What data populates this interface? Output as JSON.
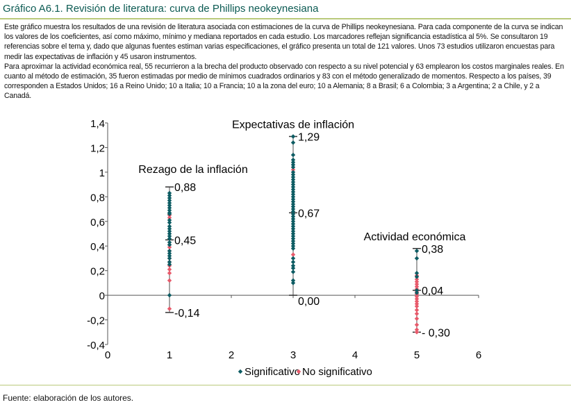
{
  "header": {
    "title": "Gráfico A6.1. Revisión de literatura: curva de Phillips neokeynesiana"
  },
  "description": [
    "Este gráfico muestra los resultados de una revisión de literatura asociada con estimaciones de la curva de Phillips neokeynesiana. Para cada componente de la curva se indican los valores de los coeficientes, así como máximo, mínimo y mediana reportados en cada estudio. Los marcadores reflejan significancia estadística al 5%. Se consultaron 19 referencias sobre el tema y, dado que algunas fuentes estiman varias especificaciones, el gráfico presenta un total de 121 valores. Unos 73 estudios utilizaron encuestas para medir las expectativas de inflación y 45 usaron instrumentos.",
    "Para aproximar la actividad económica real, 55 recurrieron a la brecha del producto observado con respecto a su nivel potencial y 63 emplearon los costos marginales reales. En cuanto al método de estimación, 35 fueron estimadas por medio de mínimos cuadrados ordinarios y 83 con el método generalizado de momentos. Respecto a los países, 39 corresponden a Estados Unidos; 16 a Reino Unido; 10 a Italia; 10 a Francia; 10 a la zona del euro; 10 a Alemania; 8 a Brasil; 6 a Colombia; 3 a Argentina; 2 a Chile, y 2 a Canadá."
  ],
  "source": "Fuente: elaboración de los autores.",
  "colors": {
    "significant": "#0d5c63",
    "not_significant": "#e85a6b",
    "axis": "#555555"
  },
  "chart_data": {
    "type": "scatter",
    "xlim": [
      0,
      6
    ],
    "ylim": [
      -0.4,
      1.4
    ],
    "xticks": [
      "0",
      "1",
      "2",
      "3",
      "4",
      "5",
      "6"
    ],
    "yticks": [
      "1,4",
      "1,2",
      "1",
      "0,8",
      "0,6",
      "0,4",
      "0,2",
      "0",
      "-0,2",
      "-0,4"
    ],
    "ytick_values": [
      1.4,
      1.2,
      1,
      0.8,
      0.6,
      0.4,
      0.2,
      0,
      -0.2,
      -0.4
    ],
    "legend": [
      "Significativo",
      "No significativo"
    ],
    "groups": [
      {
        "name": "Rezago de la inflación",
        "x": 1,
        "max": 0.88,
        "median": 0.45,
        "min": -0.14,
        "max_label": "0,88",
        "median_label": "0,45",
        "min_label": "-0,14",
        "significant": [
          0.83,
          0.81,
          0.79,
          0.77,
          0.75,
          0.73,
          0.71,
          0.69,
          0.67,
          0.66,
          0.61,
          0.59,
          0.56,
          0.54,
          0.52,
          0.5,
          0.48,
          0.46,
          0.43,
          0.41,
          0.36,
          0.34,
          0.32,
          0.3,
          0.27,
          0.25,
          0.0
        ],
        "not_significant": [
          0.65,
          0.63,
          0.41,
          0.39,
          0.36,
          0.3,
          0.27,
          0.24,
          0.21,
          0.18,
          0.12,
          -0.11
        ]
      },
      {
        "name": "Expectativas de inflación",
        "x": 3,
        "max": 1.29,
        "median": 0.67,
        "min": 0.0,
        "max_label": "1,29",
        "median_label": "0,67",
        "min_label": "0,00",
        "significant": [
          1.29,
          1.24,
          1.14,
          1.1,
          1.08,
          1.06,
          1.04,
          1.0,
          0.98,
          0.96,
          0.94,
          0.92,
          0.9,
          0.88,
          0.86,
          0.84,
          0.82,
          0.8,
          0.78,
          0.76,
          0.74,
          0.72,
          0.7,
          0.68,
          0.66,
          0.64,
          0.62,
          0.6,
          0.58,
          0.56,
          0.54,
          0.52,
          0.5,
          0.48,
          0.46,
          0.44,
          0.42,
          0.4,
          0.38,
          0.3,
          0.27,
          0.24,
          0.22,
          0.19,
          0.12,
          0.1
        ],
        "not_significant": [
          1.02,
          0.33
        ]
      },
      {
        "name": "Actividad económica",
        "x": 5,
        "max": 0.38,
        "median": 0.04,
        "min": -0.3,
        "max_label": "0,38",
        "median_label": "0,04",
        "min_label": "- 0,30",
        "significant": [
          0.36,
          0.3,
          0.18,
          0.15,
          0.04,
          0.02
        ],
        "not_significant": [
          0.16,
          0.13,
          0.11,
          0.09,
          0.07,
          0.05,
          0.03,
          0.01,
          -0.01,
          -0.03,
          -0.05,
          -0.07,
          -0.09,
          -0.12,
          -0.15,
          -0.19,
          -0.24,
          -0.28,
          -0.3
        ]
      }
    ]
  }
}
